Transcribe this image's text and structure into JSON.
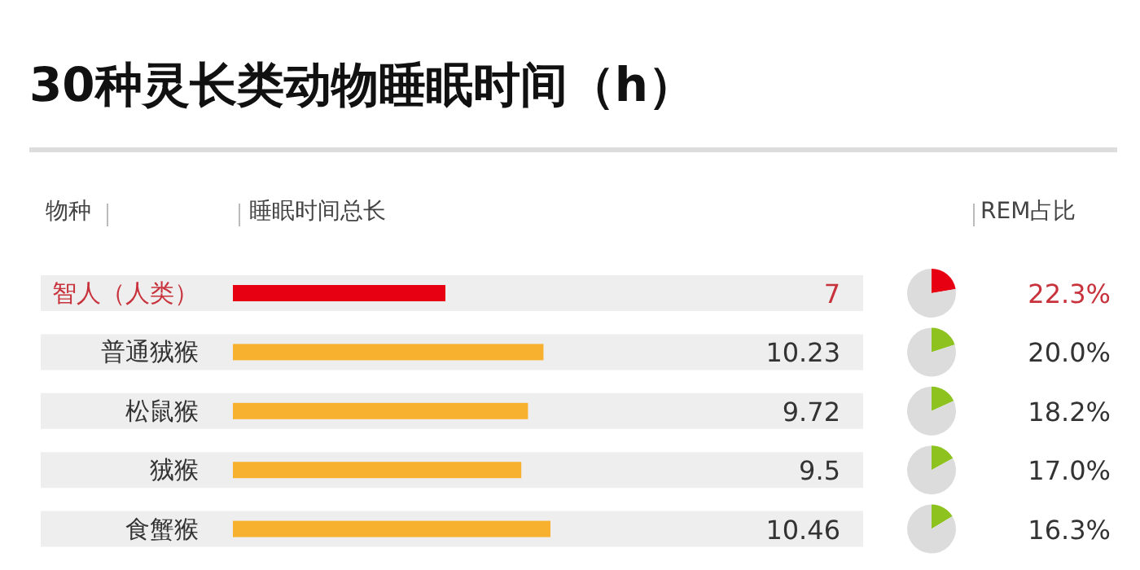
{
  "chart_data": [
    {
      "type": "bar",
      "orientation": "horizontal",
      "title": "30种灵长类动物睡眠时间（h）",
      "ylabel": "物种",
      "xlabel": "睡眠时间总长",
      "categories": [
        "智人（人类）",
        "普通狨猴",
        "松鼠猴",
        "狨猴",
        "食蟹猴"
      ],
      "values": [
        7,
        10.23,
        9.72,
        9.5,
        10.46
      ],
      "colors": [
        "#e60012",
        "#f7b12f",
        "#f7b12f",
        "#f7b12f",
        "#f7b12f"
      ],
      "data_labels": true
    },
    {
      "type": "pie",
      "title": "REM占比",
      "categories": [
        null,
        null
      ],
      "values": [
        22.3,
        77.7
      ],
      "colors": [
        "#e60012",
        "#dcdcdc"
      ],
      "value_labels": [
        "22.3%",
        null
      ]
    },
    {
      "type": "pie",
      "categories": [
        null,
        null
      ],
      "values": [
        20.0,
        80.0
      ],
      "colors": [
        "#8dc21f",
        "#dcdcdc"
      ],
      "value_labels": [
        "20.0%",
        null
      ]
    },
    {
      "type": "pie",
      "categories": [
        null,
        null
      ],
      "values": [
        18.2,
        81.8
      ],
      "colors": [
        "#8dc21f",
        "#dcdcdc"
      ],
      "value_labels": [
        "18.2%",
        null
      ]
    },
    {
      "type": "pie",
      "categories": [
        null,
        null
      ],
      "values": [
        17.0,
        83.0
      ],
      "colors": [
        "#8dc21f",
        "#dcdcdc"
      ],
      "value_labels": [
        "17.0%",
        null
      ]
    },
    {
      "type": "pie",
      "categories": [
        null,
        null
      ],
      "values": [
        16.3,
        83.7
      ],
      "colors": [
        "#8dc21f",
        "#dcdcdc"
      ],
      "value_labels": [
        "16.3%",
        null
      ]
    }
  ]
}
